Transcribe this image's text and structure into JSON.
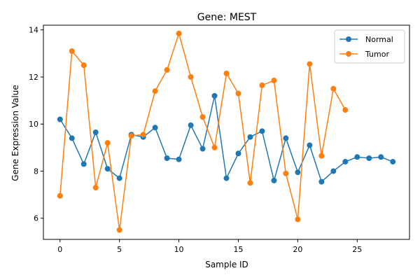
{
  "chart_data": {
    "type": "line",
    "title": "Gene: MEST",
    "xlabel": "Sample ID",
    "ylabel": "Gene Expression Value",
    "xlim": [
      -1.4,
      29.4
    ],
    "ylim": [
      5.1,
      14.2
    ],
    "x_ticks": [
      0,
      5,
      10,
      15,
      20,
      25
    ],
    "y_ticks": [
      6,
      8,
      10,
      12,
      14
    ],
    "grid": false,
    "legend_position": "top-right",
    "series": [
      {
        "name": "Normal",
        "color": "#1f77b4",
        "marker": "circle",
        "x": [
          0,
          1,
          2,
          3,
          4,
          5,
          6,
          7,
          8,
          9,
          10,
          11,
          12,
          13,
          14,
          15,
          16,
          17,
          18,
          19,
          20,
          21,
          22,
          23,
          24,
          25,
          26,
          27,
          28
        ],
        "values": [
          10.2,
          9.4,
          8.3,
          9.65,
          8.1,
          7.7,
          9.55,
          9.45,
          9.85,
          8.55,
          8.5,
          9.95,
          8.95,
          11.2,
          7.7,
          8.75,
          9.45,
          9.7,
          7.6,
          9.4,
          7.95,
          9.1,
          7.55,
          8.0,
          8.4,
          8.6,
          8.55,
          8.6,
          8.4
        ]
      },
      {
        "name": "Tumor",
        "color": "#ff7f0e",
        "marker": "circle",
        "x": [
          0,
          1,
          2,
          3,
          4,
          5,
          6,
          7,
          8,
          9,
          10,
          11,
          12,
          13,
          14,
          15,
          16,
          17,
          18,
          19,
          20,
          21,
          22,
          23,
          24
        ],
        "values": [
          6.95,
          13.1,
          12.5,
          7.3,
          9.2,
          5.5,
          9.5,
          9.55,
          11.4,
          12.3,
          13.85,
          12.0,
          10.3,
          9.0,
          12.15,
          11.3,
          7.5,
          11.65,
          11.85,
          7.9,
          5.95,
          12.55,
          8.65,
          11.5,
          10.6
        ]
      }
    ]
  }
}
